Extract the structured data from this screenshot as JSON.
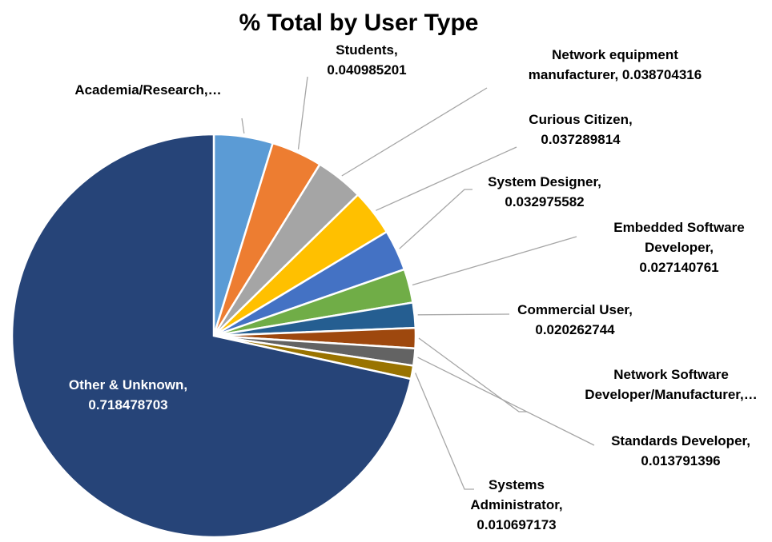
{
  "chart_data": {
    "type": "pie",
    "title": "% Total by User Type",
    "start_angle_deg": 0,
    "direction": "clockwise",
    "slices": [
      {
        "name": "Academia/Research",
        "label_lines": [
          "Academia/Research,…"
        ],
        "value": 0.0474,
        "color": "#5b9bd5"
      },
      {
        "name": "Students",
        "label_lines": [
          "Students,",
          "0.040985201"
        ],
        "value": 0.040985201,
        "color": "#ed7d31"
      },
      {
        "name": "Network equipment manufacturer",
        "label_lines": [
          "Network equipment",
          "manufacturer, 0.038704316"
        ],
        "value": 0.038704316,
        "color": "#a5a5a5"
      },
      {
        "name": "Curious Citizen",
        "label_lines": [
          "Curious Citizen,",
          "0.037289814"
        ],
        "value": 0.037289814,
        "color": "#ffc000"
      },
      {
        "name": "System Designer",
        "label_lines": [
          "System Designer,",
          "0.032975582"
        ],
        "value": 0.032975582,
        "color": "#4472c4"
      },
      {
        "name": "Embedded Software Developer",
        "label_lines": [
          "Embedded Software",
          "Developer,",
          "0.027140761"
        ],
        "value": 0.027140761,
        "color": "#70ad47"
      },
      {
        "name": "Commercial User",
        "label_lines": [
          "Commercial User,",
          "0.020262744"
        ],
        "value": 0.020262744,
        "color": "#255e91"
      },
      {
        "name": "Network Software Developer/Manufacturer",
        "label_lines": [
          "Network Software",
          "Developer/Manufacturer,…"
        ],
        "value": 0.0163,
        "color": "#9e480e"
      },
      {
        "name": "Standards Developer",
        "label_lines": [
          "Standards Developer,",
          "0.013791396"
        ],
        "value": 0.013791396,
        "color": "#636363"
      },
      {
        "name": "Systems Administrator",
        "label_lines": [
          "Systems",
          "Administrator,",
          "0.010697173"
        ],
        "value": 0.010697173,
        "color": "#997300"
      },
      {
        "name": "Other & Unknown",
        "label_lines": [
          "Other & Unknown,",
          "0.718478703"
        ],
        "value": 0.718478703,
        "color": "#264478"
      }
    ]
  }
}
